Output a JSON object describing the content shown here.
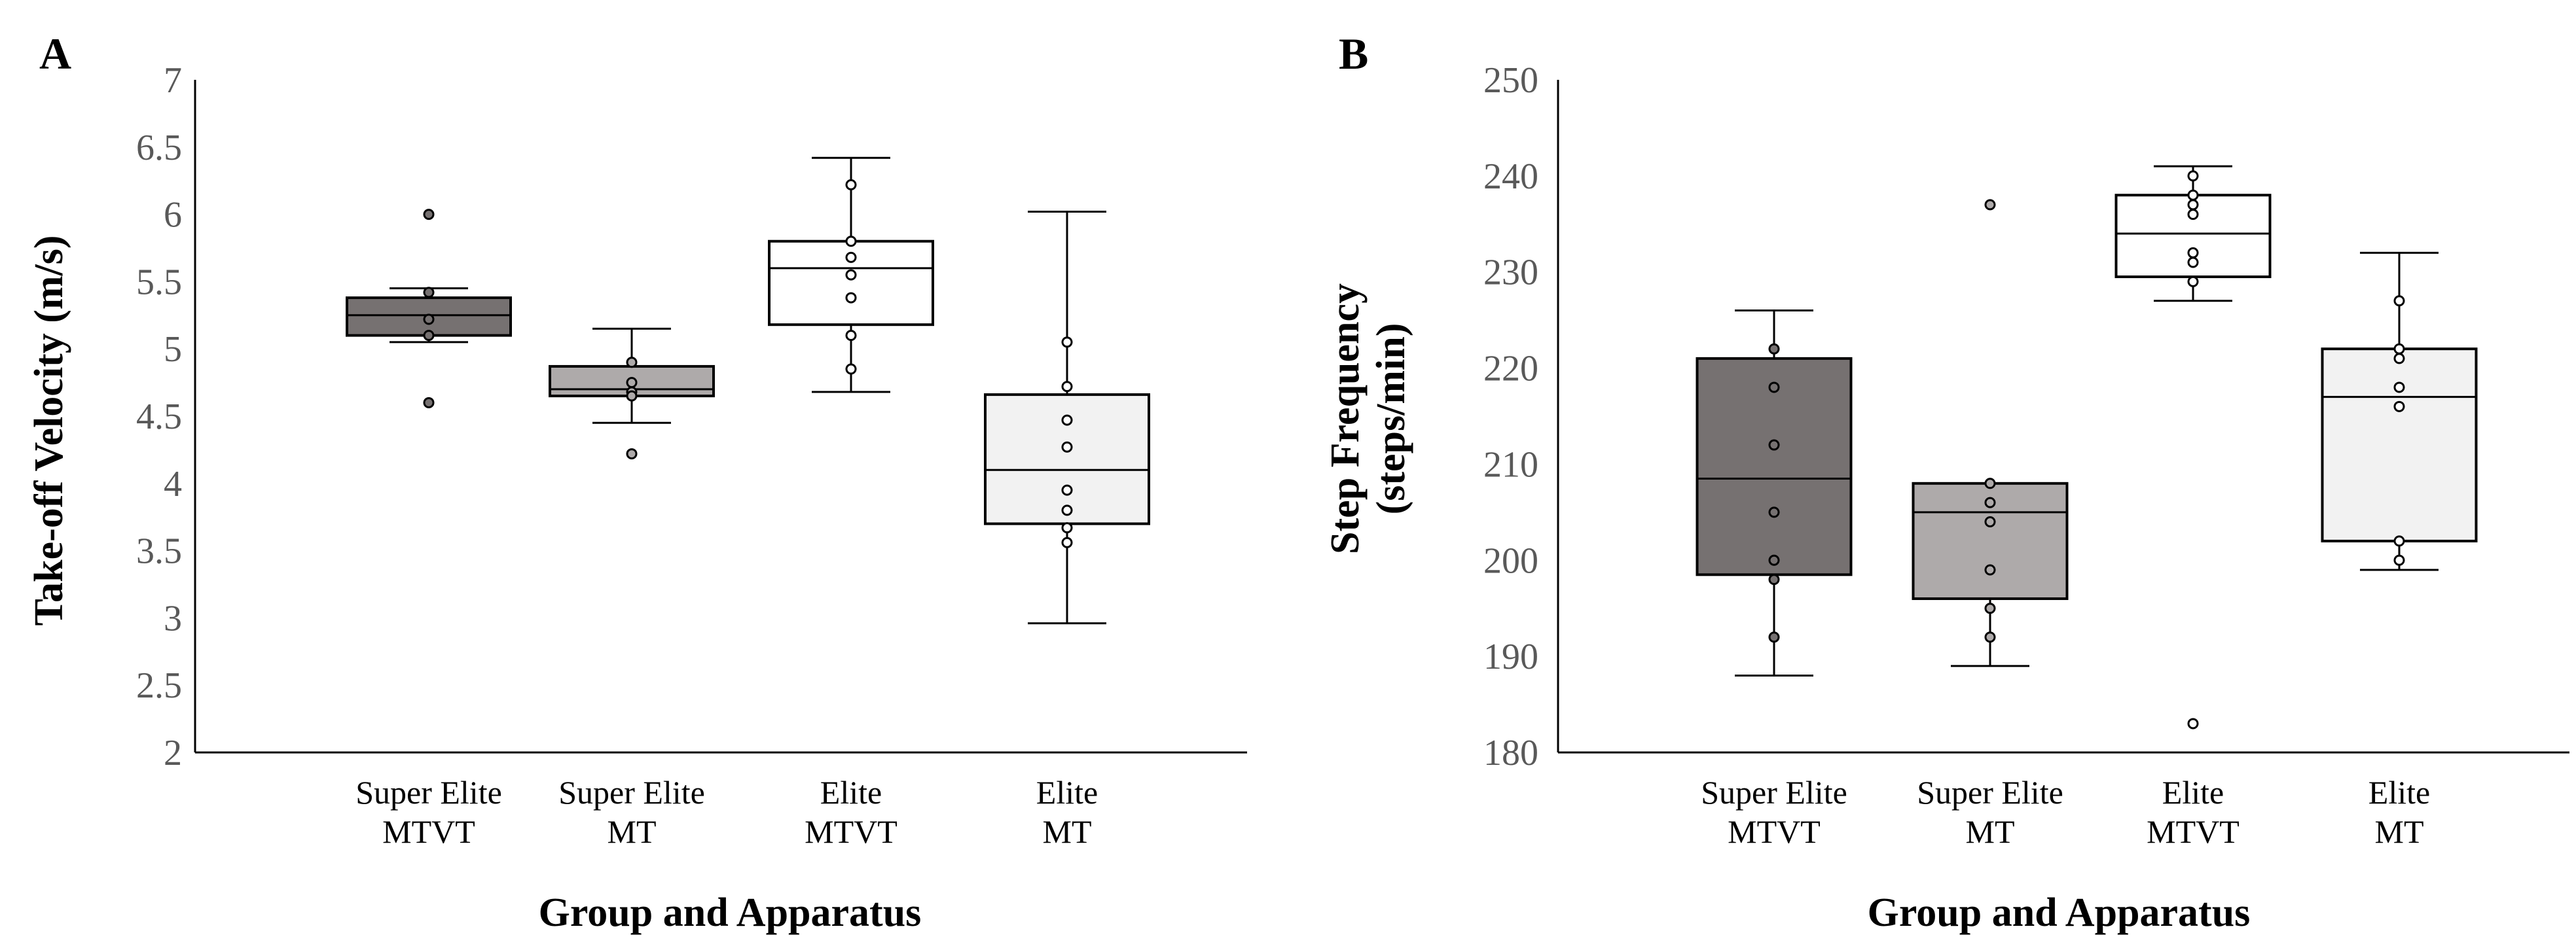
{
  "chart_data": [
    {
      "panel": "A",
      "type": "box",
      "title": "",
      "xlabel": "Group and Apparatus",
      "ylabel": "Take-off Velocity (m/s)",
      "ylim": [
        2,
        7
      ],
      "yticks": [
        "2",
        "2.5",
        "3",
        "3.5",
        "4",
        "4.5",
        "5",
        "5.5",
        "6",
        "6.5",
        "7"
      ],
      "grid": false,
      "categories": [
        {
          "line1": "Super Elite",
          "line2": "MTVT",
          "fill": "#767171",
          "whisker_low": 5.05,
          "q1": 5.1,
          "median": 5.25,
          "q3": 5.38,
          "whisker_high": 5.45,
          "points": [
            6.0,
            5.42,
            5.22,
            5.1,
            4.6
          ]
        },
        {
          "line1": "Super Elite",
          "line2": "MT",
          "fill": "#aeaaaa",
          "whisker_low": 4.45,
          "q1": 4.65,
          "median": 4.7,
          "q3": 4.87,
          "whisker_high": 5.15,
          "points": [
            4.9,
            4.75,
            4.68,
            4.65,
            4.22
          ]
        },
        {
          "line1": "Elite",
          "line2": "MTVT",
          "fill": "#ffffff",
          "whisker_low": 4.68,
          "q1": 5.18,
          "median": 5.6,
          "q3": 5.8,
          "whisker_high": 6.42,
          "points": [
            6.22,
            5.8,
            5.68,
            5.55,
            5.38,
            5.1,
            4.85
          ]
        },
        {
          "line1": "Elite",
          "line2": "MT",
          "fill": "#f2f2f2",
          "whisker_low": 2.96,
          "q1": 3.7,
          "median": 4.1,
          "q3": 4.66,
          "whisker_high": 6.02,
          "points": [
            5.05,
            4.72,
            4.47,
            4.27,
            3.95,
            3.8,
            3.67,
            3.56
          ]
        }
      ]
    },
    {
      "panel": "B",
      "type": "box",
      "title": "",
      "xlabel": "Group and Apparatus",
      "ylabel_line1": "Step Frequency",
      "ylabel_line2": "(steps/min)",
      "ylim": [
        180,
        250
      ],
      "yticks": [
        "180",
        "190",
        "200",
        "210",
        "220",
        "230",
        "240",
        "250"
      ],
      "grid": false,
      "categories": [
        {
          "line1": "Super Elite",
          "line2": "MTVT",
          "fill": "#767171",
          "whisker_low": 188,
          "q1": 198.5,
          "median": 208.5,
          "q3": 221,
          "whisker_high": 226,
          "points": [
            222,
            218,
            212,
            205,
            200,
            198,
            192
          ]
        },
        {
          "line1": "Super Elite",
          "line2": "MT",
          "fill": "#aeaaaa",
          "whisker_low": 189,
          "q1": 196,
          "median": 205,
          "q3": 208,
          "whisker_high": 208,
          "points": [
            237,
            208,
            206,
            204,
            199,
            195,
            192
          ]
        },
        {
          "line1": "Elite",
          "line2": "MTVT",
          "fill": "#ffffff",
          "whisker_low": 227,
          "q1": 229.5,
          "median": 234,
          "q3": 238,
          "whisker_high": 241,
          "points": [
            240,
            238,
            237,
            236,
            232,
            231,
            229,
            183
          ]
        },
        {
          "line1": "Elite",
          "line2": "MT",
          "fill": "#f2f2f2",
          "whisker_low": 199,
          "q1": 202,
          "median": 217,
          "q3": 222,
          "whisker_high": 232,
          "points": [
            227,
            222,
            221,
            218,
            216,
            202,
            200
          ]
        }
      ]
    }
  ]
}
